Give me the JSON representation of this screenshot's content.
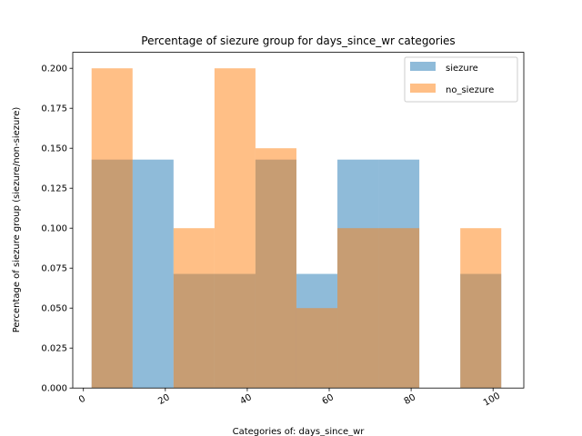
{
  "chart_data": {
    "type": "bar",
    "title": "Percentage of siezure group for days_since_wr categories",
    "xlabel": "Categories of: days_since_wr",
    "ylabel": "Percentage of siezure group (siezure/non-siezure)",
    "xlim": [
      -2.6,
      107.5
    ],
    "ylim": [
      0,
      0.21
    ],
    "xticks": [
      0,
      20,
      40,
      60,
      80,
      100
    ],
    "yticks": [
      0.0,
      0.025,
      0.05,
      0.075,
      0.1,
      0.125,
      0.15,
      0.175,
      0.2
    ],
    "ytick_labels": [
      "0.000",
      "0.025",
      "0.050",
      "0.075",
      "0.100",
      "0.125",
      "0.150",
      "0.175",
      "0.200"
    ],
    "bin_edges": [
      2,
      12,
      22,
      32,
      42,
      52,
      62,
      72,
      82,
      92,
      102
    ],
    "legend_position": "top-right",
    "grid": false,
    "series": [
      {
        "name": "siezure",
        "color": "#1f77b4",
        "values": [
          0.1429,
          0.1429,
          0.0714,
          0.0714,
          0.1429,
          0.0714,
          0.1429,
          0.1429,
          0.0,
          0.0714
        ]
      },
      {
        "name": "no_siezure",
        "color": "#ff7f0e",
        "values": [
          0.2,
          0.0,
          0.1,
          0.2,
          0.15,
          0.05,
          0.1,
          0.1,
          0.0,
          0.1
        ]
      }
    ]
  }
}
